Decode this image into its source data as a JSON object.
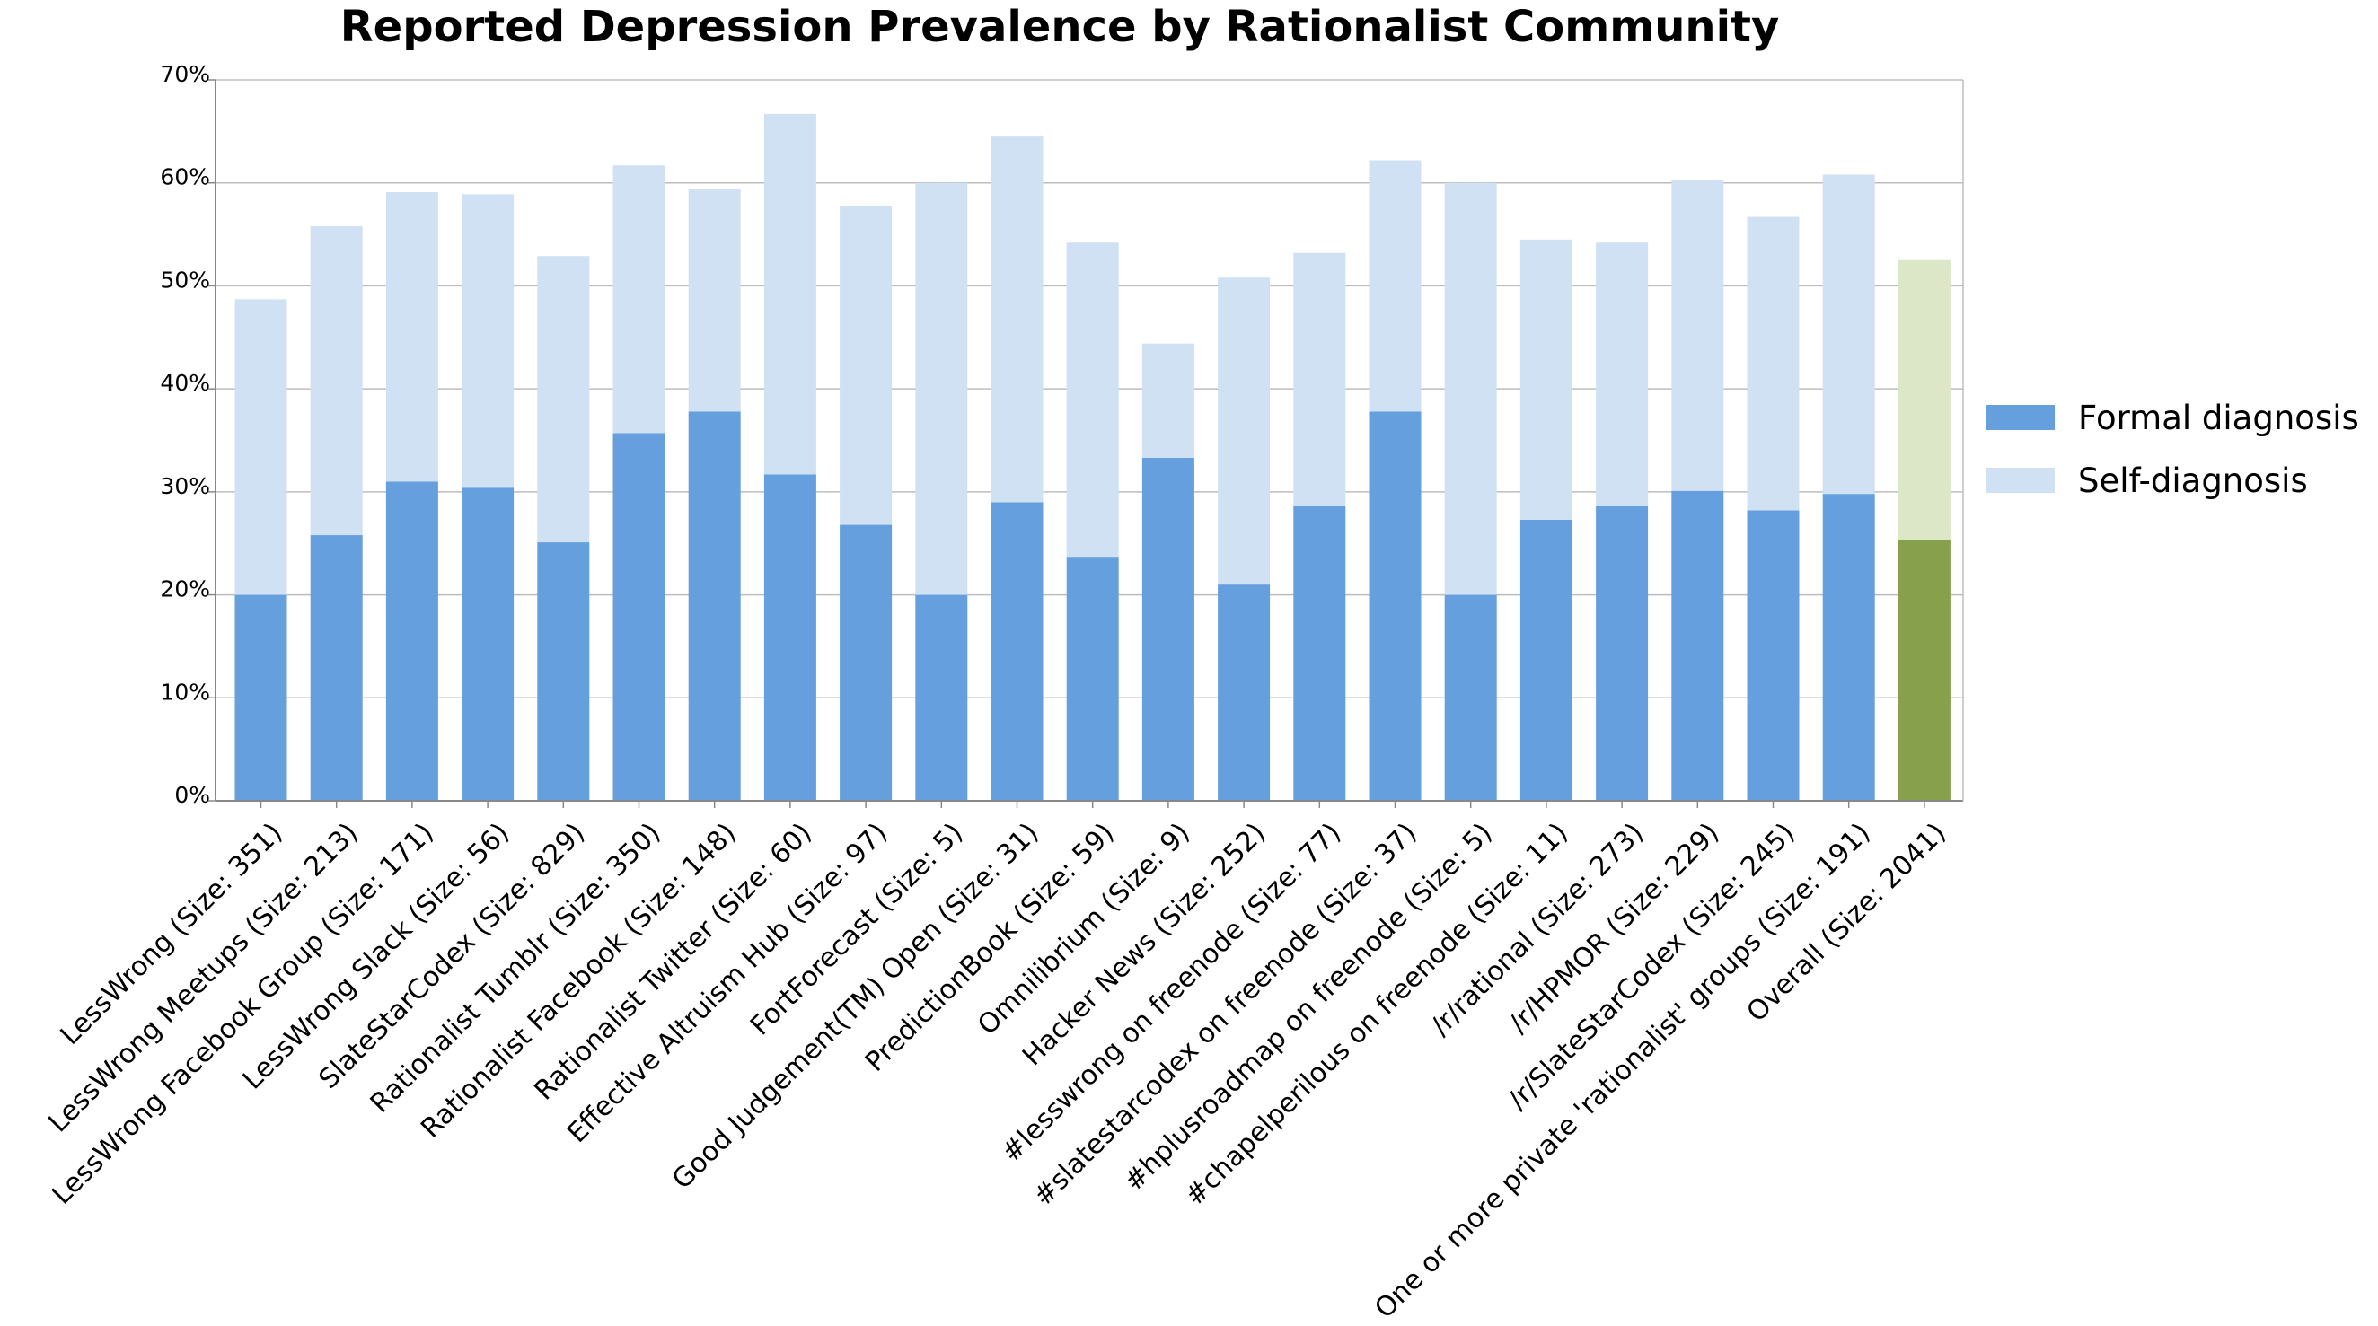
{
  "chart_data": {
    "type": "bar",
    "stacked": true,
    "title": "Reported Depression Prevalence by Rationalist Community",
    "xlabel": "",
    "ylabel": "",
    "ylim": [
      0,
      70
    ],
    "yticks": [
      "0%",
      "10%",
      "20%",
      "30%",
      "40%",
      "50%",
      "60%",
      "70%"
    ],
    "grid": true,
    "legend_position": "right",
    "categories": [
      "LessWrong (Size: 351)",
      "LessWrong Meetups (Size: 213)",
      "LessWrong Facebook Group (Size: 171)",
      "LessWrong Slack (Size: 56)",
      "SlateStarCodex (Size: 829)",
      "Rationalist Tumblr (Size: 350)",
      "Rationalist Facebook (Size: 148)",
      "Rationalist Twitter (Size: 60)",
      "Effective Altruism Hub (Size: 97)",
      "FortForecast (Size: 5)",
      "Good Judgement(TM) Open (Size: 31)",
      "PredictionBook (Size: 59)",
      "Omnilibrium (Size: 9)",
      "Hacker News (Size: 252)",
      "#lesswrong on freenode (Size: 77)",
      "#slatestarcodex on freenode (Size: 37)",
      "#hplusroadmap on freenode (Size: 5)",
      "#chapelperilous on freenode (Size: 11)",
      "/r/rational (Size: 273)",
      "/r/HPMOR (Size: 229)",
      "/r/SlateStarCodex (Size: 245)",
      "One or more private 'rationalist' groups (Size: 191)",
      "Overall (Size: 2041)"
    ],
    "series": [
      {
        "name": "Formal diagnosis",
        "color": "#659fdd",
        "highlight_color": "#87a04c",
        "values": [
          20,
          25.8,
          31,
          30.4,
          25.1,
          35.7,
          37.8,
          31.7,
          26.8,
          20,
          29,
          23.7,
          33.3,
          21,
          28.6,
          37.8,
          20,
          27.3,
          28.6,
          30.1,
          28.2,
          29.8,
          25.3
        ]
      },
      {
        "name": "Self-diagnosis",
        "color": "#d0e1f4",
        "highlight_color": "#dce7c8",
        "values": [
          28.7,
          30,
          28.1,
          28.5,
          27.8,
          26,
          21.6,
          35,
          31,
          40,
          35.5,
          30.5,
          11.1,
          29.8,
          24.6,
          24.4,
          40,
          27.2,
          25.6,
          30.2,
          28.5,
          31,
          27.2
        ]
      }
    ],
    "highlighted_category": "Overall (Size: 2041)"
  }
}
